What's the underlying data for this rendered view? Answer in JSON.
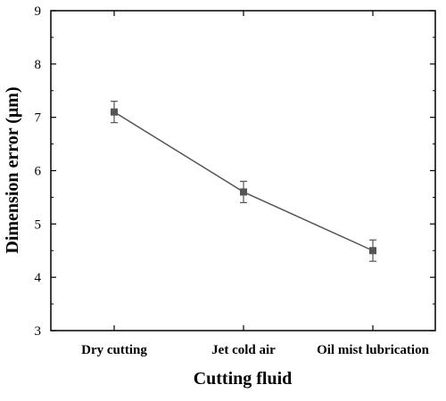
{
  "chart_data": {
    "type": "line",
    "xlabel": "Cutting fluid",
    "ylabel": "Dimension error (μm)",
    "categories": [
      "Dry cutting",
      "Jet cold air",
      "Oil mist lubrication"
    ],
    "series": [
      {
        "values": [
          7.1,
          5.6,
          4.5
        ],
        "error": [
          0.2,
          0.2,
          0.2
        ],
        "color": "#555555",
        "marker": "square"
      }
    ],
    "ylim": [
      3,
      9
    ],
    "yticks": [
      3,
      4,
      5,
      6,
      7,
      8,
      9
    ],
    "grid": false
  }
}
